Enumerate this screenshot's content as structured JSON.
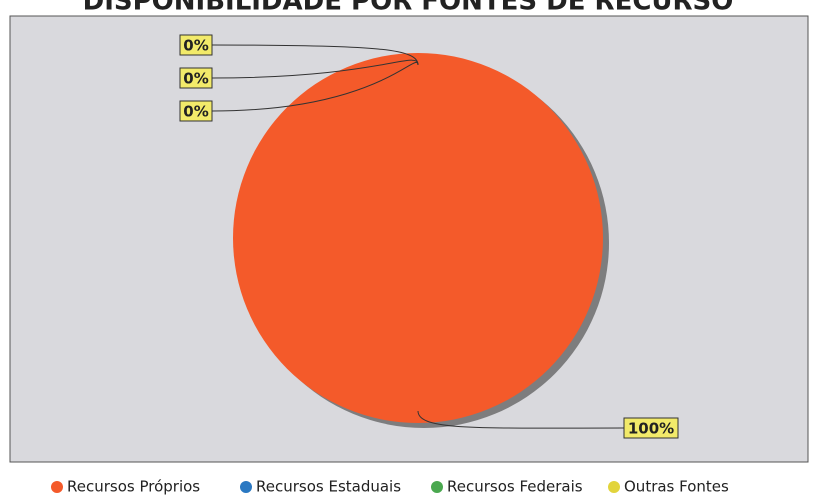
{
  "chart_data": {
    "type": "pie",
    "title": "DISPONIBILIDADE POR FONTES DE RECURSO",
    "categories": [
      "Recursos Próprios",
      "Recursos Estaduais",
      "Recursos Federais",
      "Outras Fontes"
    ],
    "values": [
      100,
      0,
      0,
      0
    ],
    "value_labels": [
      "100%",
      "0%",
      "0%",
      "0%"
    ],
    "colors": [
      "#f45a2a",
      "#2a78c2",
      "#4aa84f",
      "#e2d43c"
    ],
    "legend": "bottom"
  }
}
